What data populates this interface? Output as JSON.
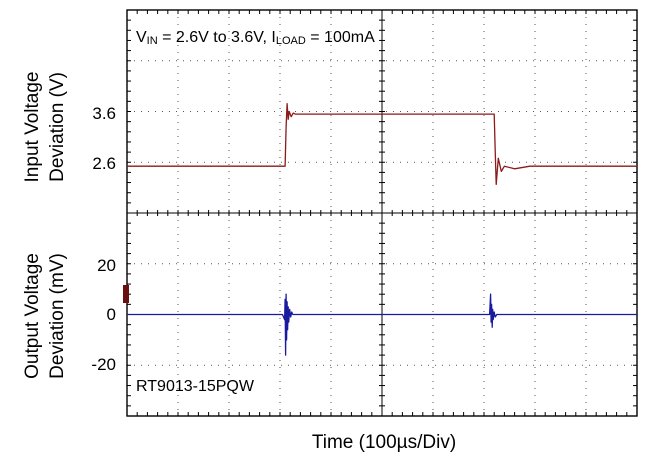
{
  "chart_data": {
    "type": "line",
    "title_parts": {
      "v": "V",
      "v_sub": "IN",
      "range": " = 2.6V to 3.6V, I",
      "i_sub": "LOAD",
      "load": " = 100mA"
    },
    "annotation": "RT9013-15PQW",
    "xlabel": "Time (100µs/Div)",
    "x_divisions": 10,
    "grid": true,
    "panels": [
      {
        "name": "input",
        "ylabel_line1": "Input Voltage",
        "ylabel_line2": "Deviation (V)",
        "ytick_labels": [
          "3.6",
          "2.6"
        ],
        "ytick_values": [
          3.6,
          2.6
        ],
        "ylim": [
          1.7,
          5.6
        ],
        "series": [
          {
            "color": "#8b1a1a",
            "x": [
              0,
              290,
              310,
              312,
              314,
              316,
              318,
              322,
              326,
              330,
              700,
              720,
              722,
              724,
              728,
              734,
              740,
              760,
              790,
              800,
              1000
            ],
            "y": [
              2.6,
              2.6,
              2.6,
              3.35,
              3.8,
              3.5,
              3.65,
              3.55,
              3.62,
              3.6,
              3.6,
              3.6,
              2.9,
              2.25,
              2.75,
              2.5,
              2.6,
              2.55,
              2.6,
              2.6,
              2.6
            ]
          }
        ]
      },
      {
        "name": "output",
        "ylabel_line1": "Output Voltage",
        "ylabel_line2": "Deviation (mV)",
        "ytick_labels": [
          "20",
          "0",
          "-20"
        ],
        "ytick_values": [
          20,
          0,
          -20
        ],
        "ylim": [
          -40,
          40
        ],
        "series": [
          {
            "color": "#1a1aa0",
            "x": [
              0,
              305,
              309,
              310,
              311,
              312,
              313,
              314,
              315,
              316,
              317,
              319,
              321,
              323,
              325,
              330,
              711,
              713,
              714,
              715,
              716,
              717,
              718,
              720,
              722,
              725,
              1000
            ],
            "y": [
              0,
              0,
              -2,
              6,
              -16,
              8,
              -10,
              5,
              -6,
              3,
              -3,
              2,
              -1,
              1,
              0,
              0,
              0,
              8,
              -3,
              4,
              -5,
              2,
              -2,
              1,
              -1,
              0,
              0
            ]
          }
        ]
      }
    ]
  }
}
